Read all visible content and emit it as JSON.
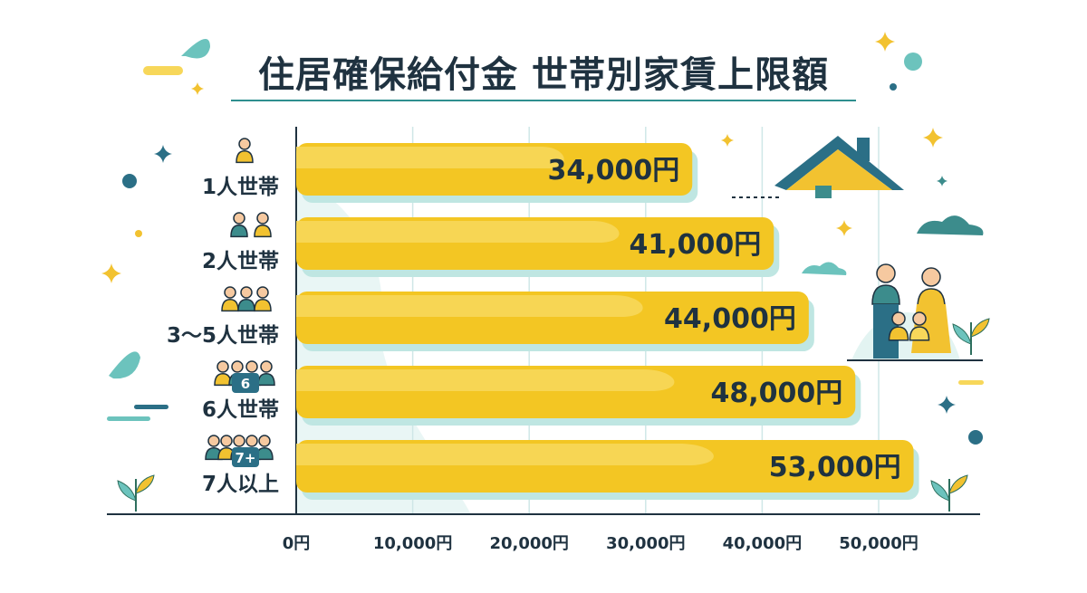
{
  "title": "住居確保給付金 世帯別家賃上限額",
  "chart_data": {
    "type": "bar",
    "orientation": "horizontal",
    "title": "住居確保給付金 世帯別家賃上限額",
    "categories": [
      "1人世帯",
      "2人世帯",
      "3〜5人世帯",
      "6人世帯",
      "7人以上"
    ],
    "values": [
      34000,
      41000,
      44000,
      48000,
      53000
    ],
    "value_labels": [
      "34,000円",
      "41,000円",
      "44,000円",
      "48,000円",
      "53,000円"
    ],
    "icon_badges": [
      "",
      "",
      "",
      "6",
      "7+"
    ],
    "xlim": [
      0,
      50000
    ],
    "x_ticks": [
      0,
      10000,
      20000,
      30000,
      40000,
      50000
    ],
    "x_tick_labels": [
      "0円",
      "10,000円",
      "20,000円",
      "30,000円",
      "40,000円",
      "50,000円"
    ],
    "xlabel": "",
    "ylabel": "",
    "grid": true,
    "colors": {
      "bar": "#f3c623",
      "bar_highlight": "#f7d75a",
      "bar_shadow": "#bfe6e2",
      "grid": "#cfe7e7",
      "text": "#1f3240",
      "accent": "#2e8f8f",
      "person_teal": "#3c8c8c",
      "person_yellow": "#f2c230",
      "skin": "#f6c9a0",
      "sparkle": "#f2c230",
      "dark_teal": "#2b6f86"
    }
  }
}
